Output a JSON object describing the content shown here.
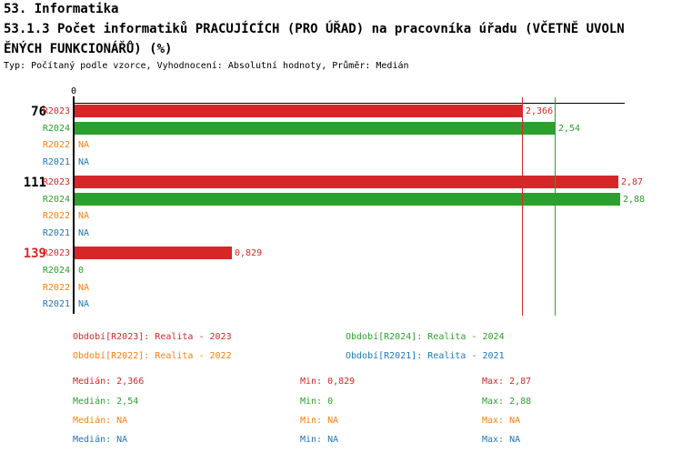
{
  "header": {
    "section": "53. Informatika",
    "title_line1": "53.1.3 Počet informatiků PRACUJÍCÍCH (PRO ÚŘAD) na pracovníka úřadu (VČETNĚ UVOLN",
    "title_line2": "ĚNÝCH FUNKCIONÁŘŮ) (%)",
    "meta": "Typ: Počítaný podle vzorce, Vyhodnocení: Absolutní hodnoty, Průměr: Medián"
  },
  "colors": {
    "red": "#d62728",
    "green": "#2ca02c",
    "orange": "#ff7f0e",
    "blue": "#1f77b4",
    "axis": "#000000"
  },
  "chart_data": {
    "type": "bar",
    "orientation": "horizontal",
    "title": "53.1.3 Počet informatiků PRACUJÍCÍCH (PRO ÚŘAD) na pracovníka úřadu (VČETNĚ UVOLNĚNÝCH FUNKCIONÁŘŮ) (%)",
    "x_axis": {
      "origin_label": "0",
      "min": 0,
      "max_extent": 2.91,
      "grid": false
    },
    "groups": [
      {
        "label": "76",
        "label_color": "#000000"
      },
      {
        "label": "111",
        "label_color": "#000000"
      },
      {
        "label": "139",
        "label_color": "#d62728"
      }
    ],
    "series": [
      {
        "name": "R2023",
        "color": "#d62728",
        "values": [
          2.366,
          2.87,
          0.829
        ],
        "value_labels": [
          "2,366",
          "2,87",
          "0,829"
        ]
      },
      {
        "name": "R2024",
        "color": "#2ca02c",
        "values": [
          2.54,
          2.88,
          0
        ],
        "value_labels": [
          "2,54",
          "2,88",
          "0"
        ]
      },
      {
        "name": "R2022",
        "color": "#ff7f0e",
        "values": [
          null,
          null,
          null
        ],
        "value_labels": [
          "NA",
          "NA",
          "NA"
        ]
      },
      {
        "name": "R2021",
        "color": "#1f77b4",
        "values": [
          null,
          null,
          null
        ],
        "value_labels": [
          "NA",
          "NA",
          "NA"
        ]
      }
    ],
    "median_lines": [
      {
        "value": 2.366,
        "color": "#d62728"
      },
      {
        "value": 2.54,
        "color": "#2ca02c"
      }
    ]
  },
  "legend": {
    "items": [
      {
        "label": "Období[R2023]: Realita - 2023",
        "color": "#d62728"
      },
      {
        "label": "Období[R2024]: Realita - 2024",
        "color": "#2ca02c"
      },
      {
        "label": "Období[R2022]: Realita - 2022",
        "color": "#ff7f0e"
      },
      {
        "label": "Období[R2021]: Realita - 2021",
        "color": "#1f77b4"
      }
    ]
  },
  "stats": {
    "rows": [
      {
        "median": "Medián: 2,366",
        "min": "Min: 0,829",
        "max": "Max: 2,87",
        "color": "#d62728"
      },
      {
        "median": "Medián: 2,54",
        "min": "Min: 0",
        "max": "Max: 2,88",
        "color": "#2ca02c"
      },
      {
        "median": "Medián: NA",
        "min": "Min: NA",
        "max": "Max: NA",
        "color": "#ff7f0e"
      },
      {
        "median": "Medián: NA",
        "min": "Min: NA",
        "max": "Max: NA",
        "color": "#1f77b4"
      }
    ]
  }
}
